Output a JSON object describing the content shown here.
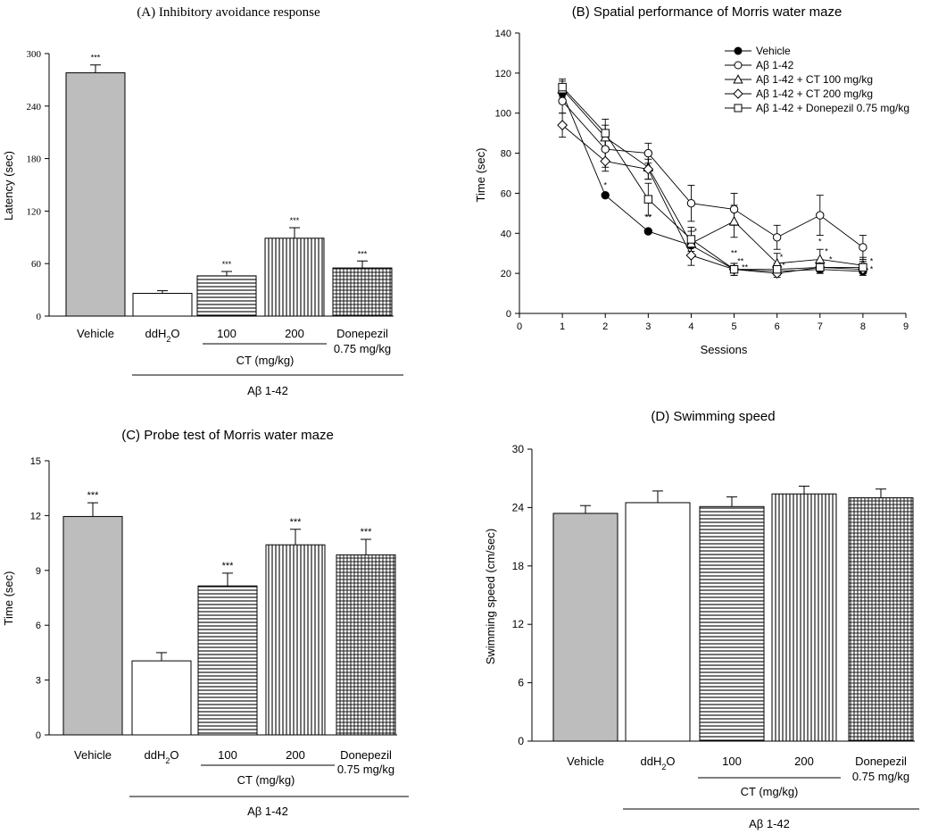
{
  "chart_data": [
    {
      "id": "A",
      "type": "bar",
      "title": "(A) Inhibitory avoidance response",
      "ylabel": "Latency (sec)",
      "ylim": [
        0,
        300
      ],
      "yticks": [
        0,
        60,
        120,
        180,
        240,
        300
      ],
      "categories": [
        "Vehicle",
        "ddH2O",
        "100",
        "200",
        "Donepezil"
      ],
      "category_sublabels": [
        "",
        "",
        "",
        "",
        "0.75 mg/kg"
      ],
      "values": [
        278,
        26,
        46,
        89,
        55
      ],
      "errors": [
        9,
        3,
        5,
        12,
        8
      ],
      "significance": [
        "***",
        "",
        "***",
        "***",
        "***"
      ],
      "patterns": [
        "gray",
        "white",
        "hlines",
        "vlines",
        "grid"
      ],
      "group_label": "CT (mg/kg)",
      "treatment_label": "Aβ 1-42"
    },
    {
      "id": "B",
      "type": "line",
      "title": "(B) Spatial performance of Morris water maze",
      "xlabel": "Sessions",
      "ylabel": "Time (sec)",
      "xlim": [
        0,
        9
      ],
      "ylim": [
        0,
        140
      ],
      "xticks": [
        0,
        1,
        2,
        3,
        4,
        5,
        6,
        7,
        8,
        9
      ],
      "yticks": [
        0,
        20,
        40,
        60,
        80,
        100,
        120,
        140
      ],
      "x": [
        1,
        2,
        3,
        4,
        5,
        6,
        7,
        8
      ],
      "legend_position": "top-right",
      "series": [
        {
          "name": "Vehicle",
          "marker": "filled-circle",
          "values": [
            110,
            59,
            41,
            34,
            22,
            21,
            22,
            21
          ],
          "errors": [
            4,
            0,
            0,
            0,
            0,
            0,
            0,
            0
          ]
        },
        {
          "name": "Aβ 1-42",
          "marker": "open-circle",
          "values": [
            106,
            82,
            80,
            55,
            52,
            38,
            49,
            33
          ],
          "errors": [
            6,
            9,
            5,
            9,
            8,
            6,
            10,
            6
          ]
        },
        {
          "name": "Aβ 1-42 + CT 100 mg/kg",
          "marker": "open-triangle",
          "values": [
            112,
            88,
            73,
            35,
            46,
            25,
            27,
            24
          ],
          "errors": [
            4,
            6,
            6,
            6,
            8,
            5,
            5,
            4
          ]
        },
        {
          "name": "Aβ 1-42 + CT 200 mg/kg",
          "marker": "open-diamond",
          "values": [
            94,
            76,
            72,
            29,
            22,
            20,
            23,
            22
          ],
          "errors": [
            6,
            5,
            5,
            5,
            3,
            2,
            3,
            3
          ]
        },
        {
          "name": "Aβ 1-42 + Donepezil 0.75 mg/kg",
          "marker": "open-square",
          "values": [
            113,
            90,
            57,
            37,
            22,
            22,
            23,
            23
          ],
          "errors": [
            4,
            7,
            8,
            6,
            3,
            3,
            3,
            3
          ]
        }
      ],
      "annotations": [
        {
          "x": 2,
          "y": 64,
          "text": "*"
        },
        {
          "x": 3,
          "y": 48,
          "text": "**"
        },
        {
          "x": 4.1,
          "y": 41,
          "text": "*"
        },
        {
          "x": 5,
          "y": 30,
          "text": "**"
        },
        {
          "x": 5.15,
          "y": 26,
          "text": "**"
        },
        {
          "x": 5.25,
          "y": 23,
          "text": "**"
        },
        {
          "x": 6.1,
          "y": 28,
          "text": "*"
        },
        {
          "x": 6.15,
          "y": 24,
          "text": "*"
        },
        {
          "x": 7,
          "y": 36,
          "text": "*"
        },
        {
          "x": 7.15,
          "y": 31,
          "text": "*"
        },
        {
          "x": 7.25,
          "y": 27,
          "text": "*"
        },
        {
          "x": 8.2,
          "y": 26,
          "text": "*"
        },
        {
          "x": 8.2,
          "y": 22,
          "text": "*"
        }
      ]
    },
    {
      "id": "C",
      "type": "bar",
      "title": "(C) Probe test of Morris water maze",
      "ylabel": "Time (sec)",
      "ylim": [
        0,
        15
      ],
      "yticks": [
        0,
        3,
        6,
        9,
        12,
        15
      ],
      "categories": [
        "Vehicle",
        "ddH2O",
        "100",
        "200",
        "Donepezil"
      ],
      "category_sublabels": [
        "",
        "",
        "",
        "",
        "0.75 mg/kg"
      ],
      "values": [
        11.95,
        4.05,
        8.15,
        10.4,
        9.85
      ],
      "errors": [
        0.75,
        0.45,
        0.7,
        0.85,
        0.85
      ],
      "significance": [
        "***",
        "",
        "***",
        "***",
        "***"
      ],
      "patterns": [
        "gray",
        "white",
        "hlines",
        "vlines",
        "grid"
      ],
      "group_label": "CT (mg/kg)",
      "treatment_label": "Aβ 1-42"
    },
    {
      "id": "D",
      "type": "bar",
      "title": "(D) Swimming speed",
      "ylabel": "Swimming speed (cm/sec)",
      "ylim": [
        0,
        30
      ],
      "yticks": [
        0,
        6,
        12,
        18,
        24,
        30
      ],
      "categories": [
        "Vehicle",
        "ddH2O",
        "100",
        "200",
        "Donepezil"
      ],
      "category_sublabels": [
        "",
        "",
        "",
        "",
        "0.75 mg/kg"
      ],
      "values": [
        23.4,
        24.5,
        24.1,
        25.4,
        25.0
      ],
      "errors": [
        0.8,
        1.2,
        1.0,
        0.8,
        0.9
      ],
      "significance": [
        "",
        "",
        "",
        "",
        ""
      ],
      "patterns": [
        "gray",
        "white",
        "hlines",
        "vlines",
        "grid"
      ],
      "group_label": "CT (mg/kg)",
      "treatment_label": "Aβ 1-42"
    }
  ]
}
